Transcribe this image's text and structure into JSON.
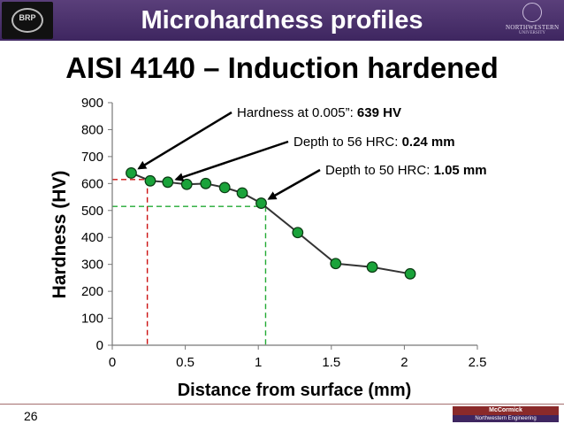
{
  "header": {
    "title": "Microhardness profiles",
    "left_logo_text": "BRP",
    "right_logo_line1": "NORTHWESTERN",
    "right_logo_line2": "UNIVERSITY"
  },
  "slide_title": "AISI 4140 – Induction hardened",
  "page_number": "26",
  "footer": {
    "logo_line1": "McCormick",
    "logo_line2": "Northwestern Engineering"
  },
  "colors": {
    "marker_fill": "#1aa33a",
    "marker_stroke": "#0a3a12",
    "line": "#333333",
    "red_guide": "#cc1111",
    "green_guide": "#22aa33",
    "header_purple": "#4b2e6e"
  },
  "chart_data": {
    "type": "line",
    "xlabel": "Distance from surface (mm)",
    "ylabel": "Hardness (HV)",
    "xlim": [
      0,
      2.5
    ],
    "ylim": [
      0,
      900
    ],
    "xticks": [
      0,
      0.5,
      1,
      1.5,
      2,
      2.5
    ],
    "xtick_labels": [
      "0",
      "0.5",
      "1",
      "1.5",
      "2",
      "2.5"
    ],
    "yticks": [
      0,
      100,
      200,
      300,
      400,
      500,
      600,
      700,
      800,
      900
    ],
    "ytick_labels": [
      "0",
      "100",
      "200",
      "300",
      "400",
      "500",
      "600",
      "700",
      "800",
      "900"
    ],
    "grid": false,
    "series": [
      {
        "x": [
          0.13,
          0.26,
          0.38,
          0.51,
          0.64,
          0.77,
          0.89,
          1.02,
          1.27,
          1.53,
          1.78,
          2.04
        ],
        "y": [
          639,
          610,
          605,
          597,
          600,
          585,
          565,
          527,
          418,
          303,
          290,
          265
        ]
      }
    ],
    "guides": [
      {
        "x": 0.24,
        "y": 615,
        "color": "red"
      },
      {
        "x": 1.05,
        "y": 515,
        "color": "green"
      }
    ],
    "annotations": [
      {
        "label": "Hardness at 0.005”: ",
        "value": "639 HV",
        "target_index": 0
      },
      {
        "label": "Depth to 56 HRC: ",
        "value": "0.24 mm",
        "target_index": 2
      },
      {
        "label": "Depth to 50 HRC: ",
        "value": "1.05 mm",
        "target_index": 7
      }
    ]
  }
}
